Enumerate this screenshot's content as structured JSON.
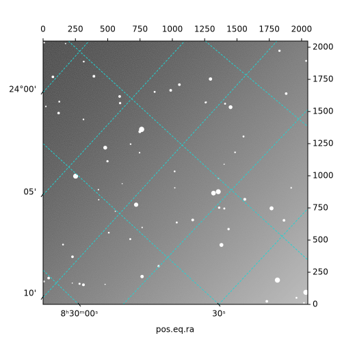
{
  "chart_data": {
    "type": "image",
    "xlabel": "pos.eq.ra",
    "xlim": [
      0,
      2048
    ],
    "ylim": [
      0,
      2048
    ],
    "xticks": [
      0,
      250,
      500,
      750,
      1000,
      1250,
      1500,
      1750,
      2000
    ],
    "yticks": [
      0,
      250,
      500,
      750,
      1000,
      1250,
      1500,
      1750,
      2000
    ],
    "ra_labels": [
      "8ʰ30ᵐ00ˢ",
      "30ˢ"
    ],
    "dec_labels": [
      "24°00'",
      "05'",
      "10'"
    ],
    "grid_color": "#22d3d3"
  }
}
